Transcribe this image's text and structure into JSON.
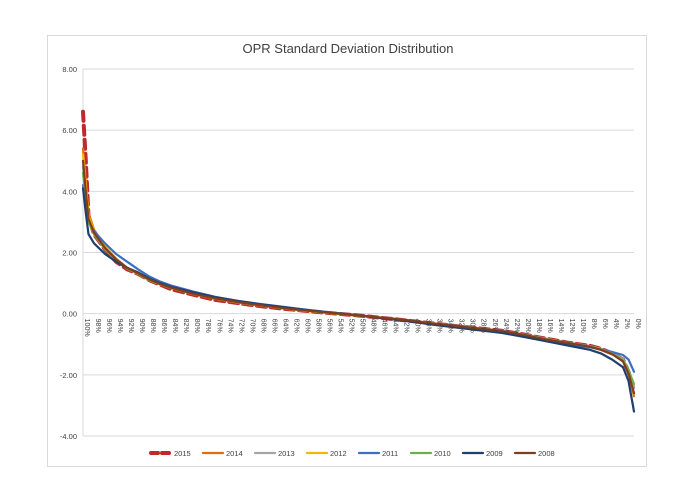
{
  "chart_data": {
    "type": "line",
    "title": "OPR Standard Deviation Distribution",
    "xlabel": "",
    "ylabel": "",
    "ylim": [
      -4,
      8
    ],
    "yticks": [
      "8.00",
      "6.00",
      "4.00",
      "2.00",
      "0.00",
      "-2.00",
      "-4.00"
    ],
    "x_categories": [
      "100%",
      "98%",
      "96%",
      "94%",
      "92%",
      "90%",
      "88%",
      "86%",
      "84%",
      "82%",
      "80%",
      "78%",
      "76%",
      "74%",
      "72%",
      "70%",
      "68%",
      "66%",
      "64%",
      "62%",
      "60%",
      "58%",
      "56%",
      "54%",
      "52%",
      "50%",
      "48%",
      "46%",
      "44%",
      "42%",
      "40%",
      "38%",
      "36%",
      "34%",
      "32%",
      "30%",
      "28%",
      "26%",
      "24%",
      "22%",
      "20%",
      "18%",
      "16%",
      "14%",
      "12%",
      "10%",
      "8%",
      "6%",
      "4%",
      "2%",
      "0%"
    ],
    "grid": true,
    "legend_position": "bottom",
    "series": [
      {
        "name": "2015",
        "color": "#c0282d",
        "dashed": true,
        "points": [
          [
            100,
            6.6
          ],
          [
            99.5,
            5.0
          ],
          [
            99,
            3.2
          ],
          [
            98,
            2.6
          ],
          [
            96,
            2.1
          ],
          [
            94,
            1.7
          ],
          [
            92,
            1.45
          ],
          [
            90,
            1.3
          ],
          [
            88,
            1.1
          ],
          [
            86,
            0.95
          ],
          [
            84,
            0.8
          ],
          [
            80,
            0.62
          ],
          [
            76,
            0.45
          ],
          [
            72,
            0.35
          ],
          [
            68,
            0.25
          ],
          [
            64,
            0.17
          ],
          [
            60,
            0.1
          ],
          [
            56,
            0.03
          ],
          [
            50,
            -0.06
          ],
          [
            44,
            -0.17
          ],
          [
            40,
            -0.25
          ],
          [
            36,
            -0.33
          ],
          [
            30,
            -0.45
          ],
          [
            24,
            -0.56
          ],
          [
            20,
            -0.68
          ],
          [
            16,
            -0.82
          ],
          [
            12,
            -0.95
          ],
          [
            8,
            -1.05
          ],
          [
            6,
            -1.15
          ],
          [
            4,
            -1.3
          ],
          [
            2,
            -1.5
          ],
          [
            1,
            -1.9
          ],
          [
            0,
            -2.5
          ]
        ]
      },
      {
        "name": "2014",
        "color": "#e36c0a",
        "dashed": false,
        "points": [
          [
            100,
            5.4
          ],
          [
            99.5,
            4.3
          ],
          [
            99,
            3.3
          ],
          [
            98,
            2.75
          ],
          [
            96,
            2.2
          ],
          [
            94,
            1.8
          ],
          [
            92,
            1.5
          ],
          [
            90,
            1.32
          ],
          [
            88,
            1.12
          ],
          [
            86,
            0.97
          ],
          [
            84,
            0.85
          ],
          [
            80,
            0.65
          ],
          [
            76,
            0.5
          ],
          [
            72,
            0.38
          ],
          [
            68,
            0.28
          ],
          [
            64,
            0.19
          ],
          [
            60,
            0.11
          ],
          [
            56,
            0.04
          ],
          [
            50,
            -0.06
          ],
          [
            44,
            -0.16
          ],
          [
            40,
            -0.24
          ],
          [
            36,
            -0.33
          ],
          [
            30,
            -0.45
          ],
          [
            24,
            -0.57
          ],
          [
            20,
            -0.7
          ],
          [
            16,
            -0.85
          ],
          [
            12,
            -0.97
          ],
          [
            8,
            -1.08
          ],
          [
            6,
            -1.18
          ],
          [
            4,
            -1.32
          ],
          [
            2,
            -1.55
          ],
          [
            1,
            -1.95
          ],
          [
            0,
            -2.7
          ]
        ]
      },
      {
        "name": "2013",
        "color": "#a5a5a5",
        "dashed": false,
        "points": [
          [
            100,
            4.8
          ],
          [
            99.5,
            3.9
          ],
          [
            99,
            3.1
          ],
          [
            98,
            2.65
          ],
          [
            96,
            2.15
          ],
          [
            94,
            1.78
          ],
          [
            92,
            1.5
          ],
          [
            90,
            1.33
          ],
          [
            88,
            1.13
          ],
          [
            86,
            0.98
          ],
          [
            84,
            0.86
          ],
          [
            80,
            0.66
          ],
          [
            76,
            0.5
          ],
          [
            72,
            0.38
          ],
          [
            68,
            0.28
          ],
          [
            64,
            0.19
          ],
          [
            60,
            0.11
          ],
          [
            56,
            0.04
          ],
          [
            50,
            -0.06
          ],
          [
            44,
            -0.16
          ],
          [
            40,
            -0.24
          ],
          [
            36,
            -0.32
          ],
          [
            30,
            -0.44
          ],
          [
            24,
            -0.56
          ],
          [
            20,
            -0.68
          ],
          [
            16,
            -0.82
          ],
          [
            12,
            -0.95
          ],
          [
            8,
            -1.06
          ],
          [
            6,
            -1.15
          ],
          [
            4,
            -1.28
          ],
          [
            2,
            -1.48
          ],
          [
            1,
            -1.85
          ],
          [
            0,
            -2.4
          ]
        ]
      },
      {
        "name": "2012",
        "color": "#f2b800",
        "dashed": false,
        "points": [
          [
            100,
            5.2
          ],
          [
            99.5,
            4.2
          ],
          [
            99,
            3.2
          ],
          [
            98,
            2.7
          ],
          [
            96,
            2.2
          ],
          [
            94,
            1.8
          ],
          [
            92,
            1.48
          ],
          [
            90,
            1.3
          ],
          [
            88,
            1.1
          ],
          [
            86,
            0.96
          ],
          [
            84,
            0.84
          ],
          [
            80,
            0.64
          ],
          [
            76,
            0.49
          ],
          [
            72,
            0.37
          ],
          [
            68,
            0.27
          ],
          [
            64,
            0.18
          ],
          [
            60,
            0.1
          ],
          [
            56,
            0.03
          ],
          [
            50,
            -0.07
          ],
          [
            44,
            -0.17
          ],
          [
            40,
            -0.25
          ],
          [
            36,
            -0.34
          ],
          [
            30,
            -0.46
          ],
          [
            24,
            -0.58
          ],
          [
            20,
            -0.7
          ],
          [
            16,
            -0.84
          ],
          [
            12,
            -0.96
          ],
          [
            8,
            -1.08
          ],
          [
            6,
            -1.18
          ],
          [
            4,
            -1.3
          ],
          [
            2,
            -1.55
          ],
          [
            1,
            -1.9
          ],
          [
            0,
            -2.6
          ]
        ]
      },
      {
        "name": "2011",
        "color": "#3a6fc4",
        "dashed": false,
        "points": [
          [
            100,
            4.2
          ],
          [
            99.5,
            3.5
          ],
          [
            99,
            3.0
          ],
          [
            98,
            2.7
          ],
          [
            96,
            2.3
          ],
          [
            94,
            1.95
          ],
          [
            92,
            1.7
          ],
          [
            90,
            1.45
          ],
          [
            88,
            1.22
          ],
          [
            86,
            1.05
          ],
          [
            84,
            0.92
          ],
          [
            80,
            0.72
          ],
          [
            76,
            0.55
          ],
          [
            72,
            0.42
          ],
          [
            68,
            0.32
          ],
          [
            64,
            0.23
          ],
          [
            60,
            0.14
          ],
          [
            56,
            0.06
          ],
          [
            50,
            -0.05
          ],
          [
            44,
            -0.17
          ],
          [
            40,
            -0.26
          ],
          [
            36,
            -0.36
          ],
          [
            30,
            -0.49
          ],
          [
            24,
            -0.62
          ],
          [
            20,
            -0.74
          ],
          [
            16,
            -0.88
          ],
          [
            12,
            -1.0
          ],
          [
            8,
            -1.1
          ],
          [
            6,
            -1.17
          ],
          [
            4,
            -1.25
          ],
          [
            2,
            -1.35
          ],
          [
            1,
            -1.5
          ],
          [
            0,
            -1.9
          ]
        ]
      },
      {
        "name": "2010",
        "color": "#70ad47",
        "dashed": false,
        "points": [
          [
            100,
            4.6
          ],
          [
            99.5,
            3.8
          ],
          [
            99,
            3.0
          ],
          [
            98,
            2.6
          ],
          [
            96,
            2.1
          ],
          [
            94,
            1.75
          ],
          [
            92,
            1.48
          ],
          [
            90,
            1.3
          ],
          [
            88,
            1.1
          ],
          [
            86,
            0.96
          ],
          [
            84,
            0.84
          ],
          [
            80,
            0.65
          ],
          [
            76,
            0.5
          ],
          [
            72,
            0.38
          ],
          [
            68,
            0.28
          ],
          [
            64,
            0.19
          ],
          [
            60,
            0.11
          ],
          [
            56,
            0.04
          ],
          [
            50,
            -0.06
          ],
          [
            44,
            -0.16
          ],
          [
            40,
            -0.24
          ],
          [
            36,
            -0.33
          ],
          [
            30,
            -0.45
          ],
          [
            24,
            -0.57
          ],
          [
            20,
            -0.69
          ],
          [
            16,
            -0.83
          ],
          [
            12,
            -0.95
          ],
          [
            8,
            -1.07
          ],
          [
            6,
            -1.17
          ],
          [
            4,
            -1.3
          ],
          [
            2,
            -1.52
          ],
          [
            1,
            -1.85
          ],
          [
            0,
            -2.3
          ]
        ]
      },
      {
        "name": "2009",
        "color": "#1f3f6e",
        "dashed": false,
        "points": [
          [
            100,
            4.1
          ],
          [
            99.5,
            3.3
          ],
          [
            99,
            2.6
          ],
          [
            98,
            2.3
          ],
          [
            96,
            1.95
          ],
          [
            94,
            1.7
          ],
          [
            92,
            1.5
          ],
          [
            90,
            1.35
          ],
          [
            88,
            1.15
          ],
          [
            86,
            1.0
          ],
          [
            84,
            0.88
          ],
          [
            80,
            0.7
          ],
          [
            76,
            0.54
          ],
          [
            72,
            0.42
          ],
          [
            68,
            0.31
          ],
          [
            64,
            0.22
          ],
          [
            60,
            0.13
          ],
          [
            56,
            0.05
          ],
          [
            50,
            -0.06
          ],
          [
            44,
            -0.18
          ],
          [
            40,
            -0.27
          ],
          [
            36,
            -0.37
          ],
          [
            30,
            -0.5
          ],
          [
            24,
            -0.63
          ],
          [
            20,
            -0.76
          ],
          [
            16,
            -0.9
          ],
          [
            12,
            -1.04
          ],
          [
            8,
            -1.18
          ],
          [
            6,
            -1.3
          ],
          [
            4,
            -1.5
          ],
          [
            2,
            -1.75
          ],
          [
            1,
            -2.2
          ],
          [
            0,
            -3.2
          ]
        ]
      },
      {
        "name": "2008",
        "color": "#7f3f1f",
        "dashed": false,
        "points": [
          [
            100,
            5.0
          ],
          [
            99.5,
            4.0
          ],
          [
            99,
            3.1
          ],
          [
            98,
            2.65
          ],
          [
            96,
            2.15
          ],
          [
            94,
            1.78
          ],
          [
            92,
            1.5
          ],
          [
            90,
            1.32
          ],
          [
            88,
            1.12
          ],
          [
            86,
            0.97
          ],
          [
            84,
            0.85
          ],
          [
            80,
            0.65
          ],
          [
            76,
            0.5
          ],
          [
            72,
            0.38
          ],
          [
            68,
            0.28
          ],
          [
            64,
            0.19
          ],
          [
            60,
            0.11
          ],
          [
            56,
            0.04
          ],
          [
            50,
            -0.06
          ],
          [
            44,
            -0.16
          ],
          [
            40,
            -0.24
          ],
          [
            36,
            -0.33
          ],
          [
            30,
            -0.45
          ],
          [
            24,
            -0.57
          ],
          [
            20,
            -0.69
          ],
          [
            16,
            -0.84
          ],
          [
            12,
            -0.96
          ],
          [
            8,
            -1.08
          ],
          [
            6,
            -1.18
          ],
          [
            4,
            -1.32
          ],
          [
            2,
            -1.56
          ],
          [
            1,
            -1.95
          ],
          [
            0,
            -2.6
          ]
        ]
      }
    ]
  }
}
